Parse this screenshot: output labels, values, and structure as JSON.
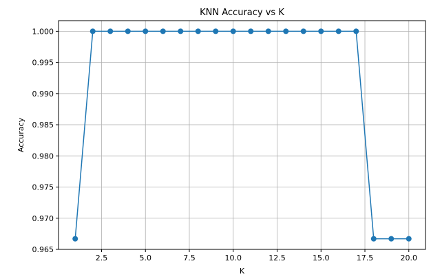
{
  "chart_data": {
    "type": "line",
    "title": "KNN Accuracy vs K",
    "xlabel": "K",
    "ylabel": "Accuracy",
    "xlim": [
      0.05,
      20.95
    ],
    "ylim": [
      0.965,
      1.0017
    ],
    "xticks": [
      2.5,
      5.0,
      7.5,
      10.0,
      12.5,
      15.0,
      17.5,
      20.0
    ],
    "xtick_labels": [
      "2.5",
      "5.0",
      "7.5",
      "10.0",
      "12.5",
      "15.0",
      "17.5",
      "20.0"
    ],
    "yticks": [
      0.965,
      0.97,
      0.975,
      0.98,
      0.985,
      0.99,
      0.995,
      1.0
    ],
    "ytick_labels": [
      "0.965",
      "0.970",
      "0.975",
      "0.980",
      "0.985",
      "0.990",
      "0.995",
      "1.000"
    ],
    "grid": true,
    "series": [
      {
        "color": "#1f77b4",
        "marker": "circle",
        "x": [
          1,
          2,
          3,
          4,
          5,
          6,
          7,
          8,
          9,
          10,
          11,
          12,
          13,
          14,
          15,
          16,
          17,
          18,
          19,
          20
        ],
        "y": [
          0.9667,
          1.0,
          1.0,
          1.0,
          1.0,
          1.0,
          1.0,
          1.0,
          1.0,
          1.0,
          1.0,
          1.0,
          1.0,
          1.0,
          1.0,
          1.0,
          1.0,
          0.9667,
          0.9667,
          0.9667
        ]
      }
    ]
  }
}
